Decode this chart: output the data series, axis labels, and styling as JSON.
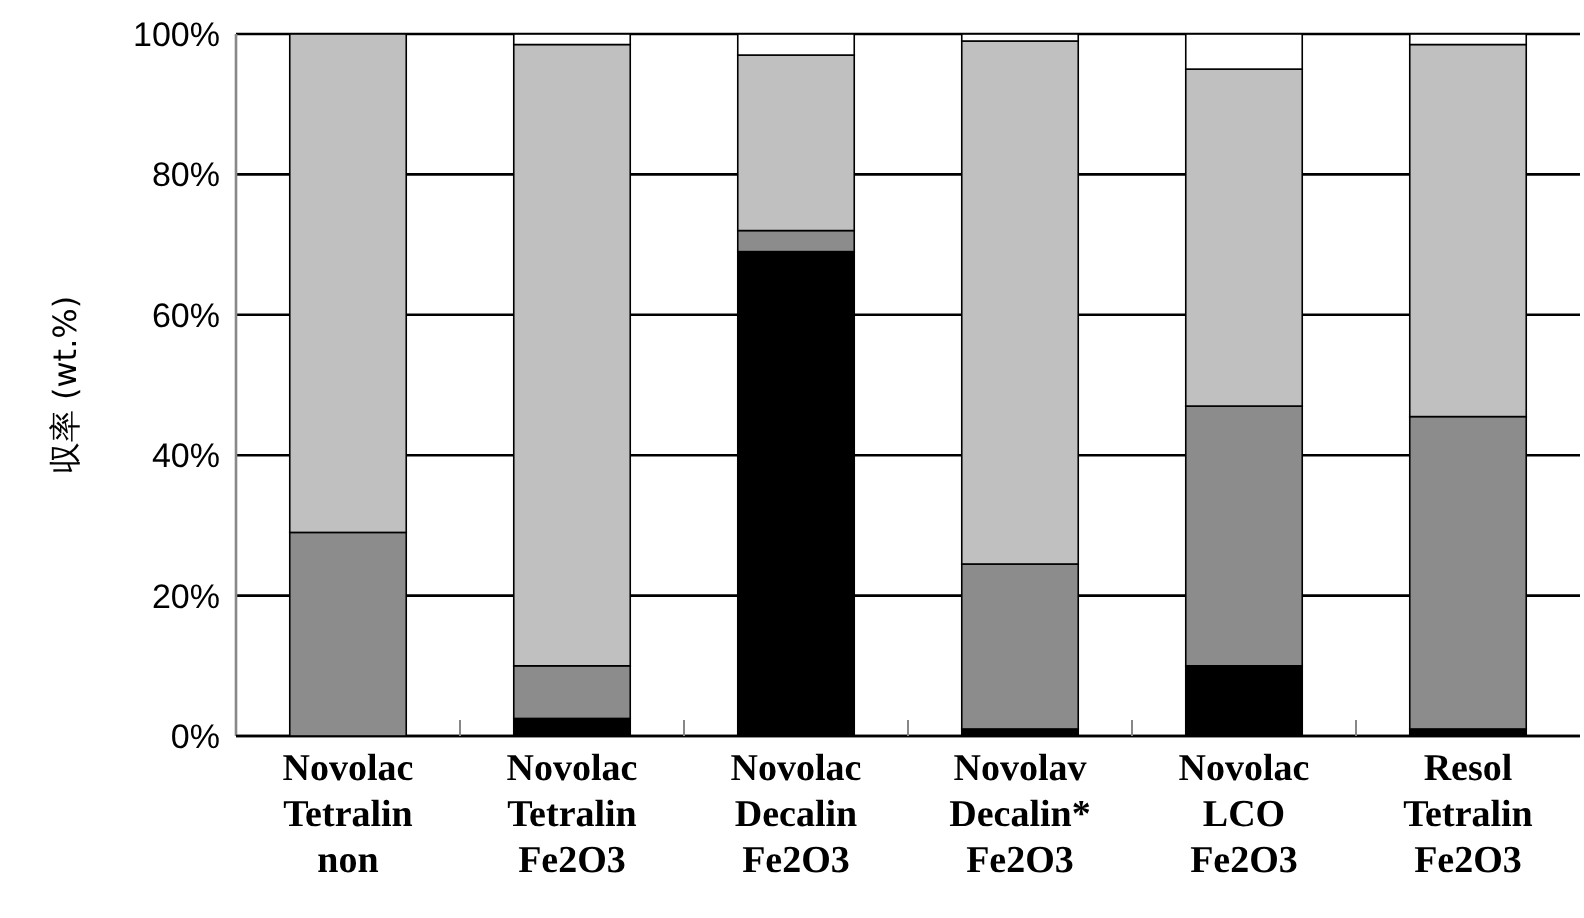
{
  "chart_data": {
    "type": "bar",
    "stacked": true,
    "ylabel": "収率 (wt.%)",
    "categories": [
      "Novolac Tetralin non",
      "Novolac Tetralin Fe2O3",
      "Novolac Decalin Fe2O3",
      "Novolav Decalin* Fe2O3",
      "Novolac LCO Fe2O3",
      "Resol Tetralin Fe2O3"
    ],
    "series": [
      {
        "color": "#000000",
        "values": [
          0,
          2.5,
          69,
          1,
          10,
          1
        ]
      },
      {
        "color": "#8c8c8c",
        "values": [
          29,
          7.5,
          3,
          23.5,
          37,
          44.5
        ]
      },
      {
        "color": "#c0c0c0",
        "values": [
          71,
          88.5,
          25,
          74.5,
          48,
          53
        ]
      },
      {
        "color": "#ffffff",
        "values": [
          0,
          1.5,
          3,
          1,
          5,
          1.5
        ]
      }
    ],
    "ylim": [
      0,
      100
    ],
    "yticks": [
      {
        "value": 0,
        "label": "0%"
      },
      {
        "value": 20,
        "label": "20%"
      },
      {
        "value": 40,
        "label": "40%"
      },
      {
        "value": 60,
        "label": "60%"
      },
      {
        "value": 80,
        "label": "80%"
      },
      {
        "value": 100,
        "label": "100%"
      }
    ],
    "grid": "y"
  }
}
